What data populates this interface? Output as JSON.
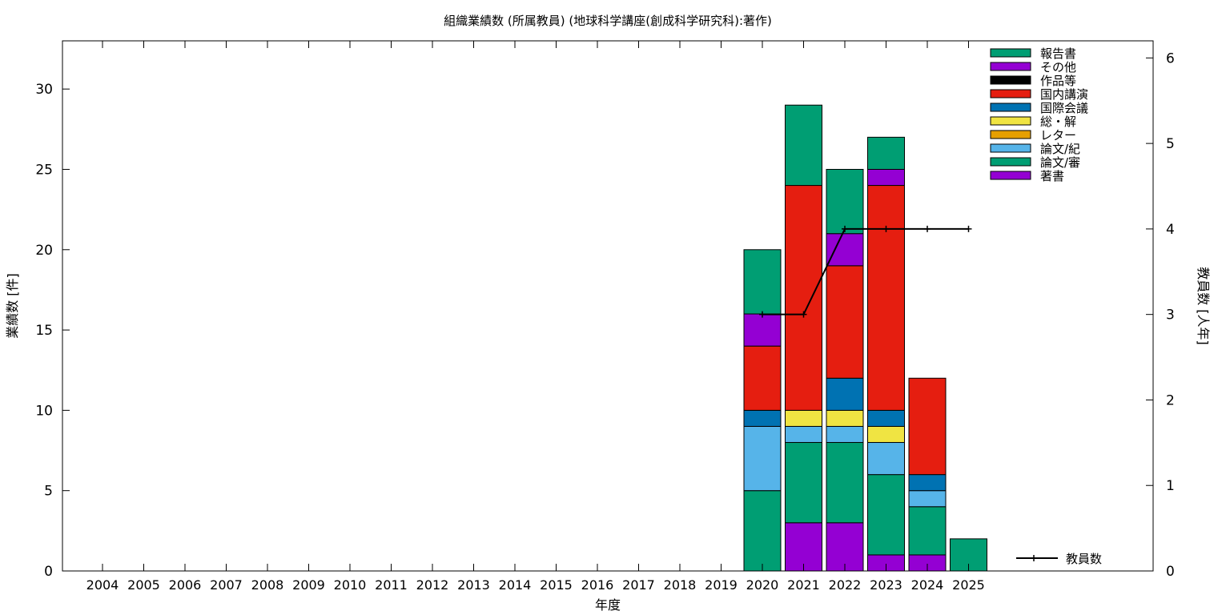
{
  "chart_data": {
    "type": "bar",
    "stacked": true,
    "title": "組織業績数 (所属教員) (地球科学講座(創成科学研究科):著作)",
    "xlabel": "年度",
    "ylabel": "業績数 [件]",
    "y2label": "教員数 [人年]",
    "ylim": [
      0,
      33
    ],
    "y2lim": [
      0,
      6.2
    ],
    "yticks": [
      "0",
      "5",
      "10",
      "15",
      "20",
      "25",
      "30"
    ],
    "y2ticks": [
      "0",
      "1",
      "2",
      "3",
      "4",
      "5",
      "6"
    ],
    "grid": false,
    "legend_position": "top-right",
    "categories": [
      "2004",
      "2005",
      "2006",
      "2007",
      "2008",
      "2009",
      "2010",
      "2011",
      "2012",
      "2013",
      "2014",
      "2015",
      "2016",
      "2017",
      "2018",
      "2019",
      "2020",
      "2021",
      "2022",
      "2023",
      "2024",
      "2025"
    ],
    "series": [
      {
        "name": "著書",
        "color": "#9400d3",
        "values": [
          0,
          0,
          0,
          0,
          0,
          0,
          0,
          0,
          0,
          0,
          0,
          0,
          0,
          0,
          0,
          0,
          0,
          3,
          3,
          1,
          1,
          0
        ]
      },
      {
        "name": "論文/審",
        "color": "#009e73",
        "values": [
          0,
          0,
          0,
          0,
          0,
          0,
          0,
          0,
          0,
          0,
          0,
          0,
          0,
          0,
          0,
          0,
          5,
          5,
          5,
          5,
          3,
          2
        ]
      },
      {
        "name": "論文/紀",
        "color": "#56b4e9",
        "values": [
          0,
          0,
          0,
          0,
          0,
          0,
          0,
          0,
          0,
          0,
          0,
          0,
          0,
          0,
          0,
          0,
          4,
          1,
          1,
          2,
          1,
          0
        ]
      },
      {
        "name": "レター",
        "color": "#e69f00",
        "values": [
          0,
          0,
          0,
          0,
          0,
          0,
          0,
          0,
          0,
          0,
          0,
          0,
          0,
          0,
          0,
          0,
          0,
          0,
          0,
          0,
          0,
          0
        ]
      },
      {
        "name": "総・解",
        "color": "#f0e442",
        "values": [
          0,
          0,
          0,
          0,
          0,
          0,
          0,
          0,
          0,
          0,
          0,
          0,
          0,
          0,
          0,
          0,
          0,
          1,
          1,
          1,
          0,
          0
        ]
      },
      {
        "name": "国際会議",
        "color": "#0072b2",
        "values": [
          0,
          0,
          0,
          0,
          0,
          0,
          0,
          0,
          0,
          0,
          0,
          0,
          0,
          0,
          0,
          0,
          1,
          0,
          2,
          1,
          1,
          0
        ]
      },
      {
        "name": "国内講演",
        "color": "#e51e10",
        "values": [
          0,
          0,
          0,
          0,
          0,
          0,
          0,
          0,
          0,
          0,
          0,
          0,
          0,
          0,
          0,
          0,
          4,
          14,
          7,
          14,
          6,
          0
        ]
      },
      {
        "name": "作品等",
        "color": "#000000",
        "values": [
          0,
          0,
          0,
          0,
          0,
          0,
          0,
          0,
          0,
          0,
          0,
          0,
          0,
          0,
          0,
          0,
          0,
          0,
          0,
          0,
          0,
          0
        ]
      },
      {
        "name": "その他",
        "color": "#9400d3",
        "values": [
          0,
          0,
          0,
          0,
          0,
          0,
          0,
          0,
          0,
          0,
          0,
          0,
          0,
          0,
          0,
          0,
          2,
          0,
          2,
          1,
          0,
          0
        ]
      },
      {
        "name": "報告書",
        "color": "#009e73",
        "values": [
          0,
          0,
          0,
          0,
          0,
          0,
          0,
          0,
          0,
          0,
          0,
          0,
          0,
          0,
          0,
          0,
          4,
          5,
          4,
          2,
          0,
          0
        ]
      }
    ],
    "legend_order": [
      "報告書",
      "その他",
      "作品等",
      "国内講演",
      "国際会議",
      "総・解",
      "レター",
      "論文/紀",
      "論文/審",
      "著書"
    ],
    "line_series": {
      "name": "教員数",
      "axis": "y2",
      "color": "#000000",
      "x": [
        "2020",
        "2021",
        "2022",
        "2023",
        "2024",
        "2025"
      ],
      "values": [
        3,
        3,
        4,
        4,
        4,
        4
      ]
    }
  }
}
